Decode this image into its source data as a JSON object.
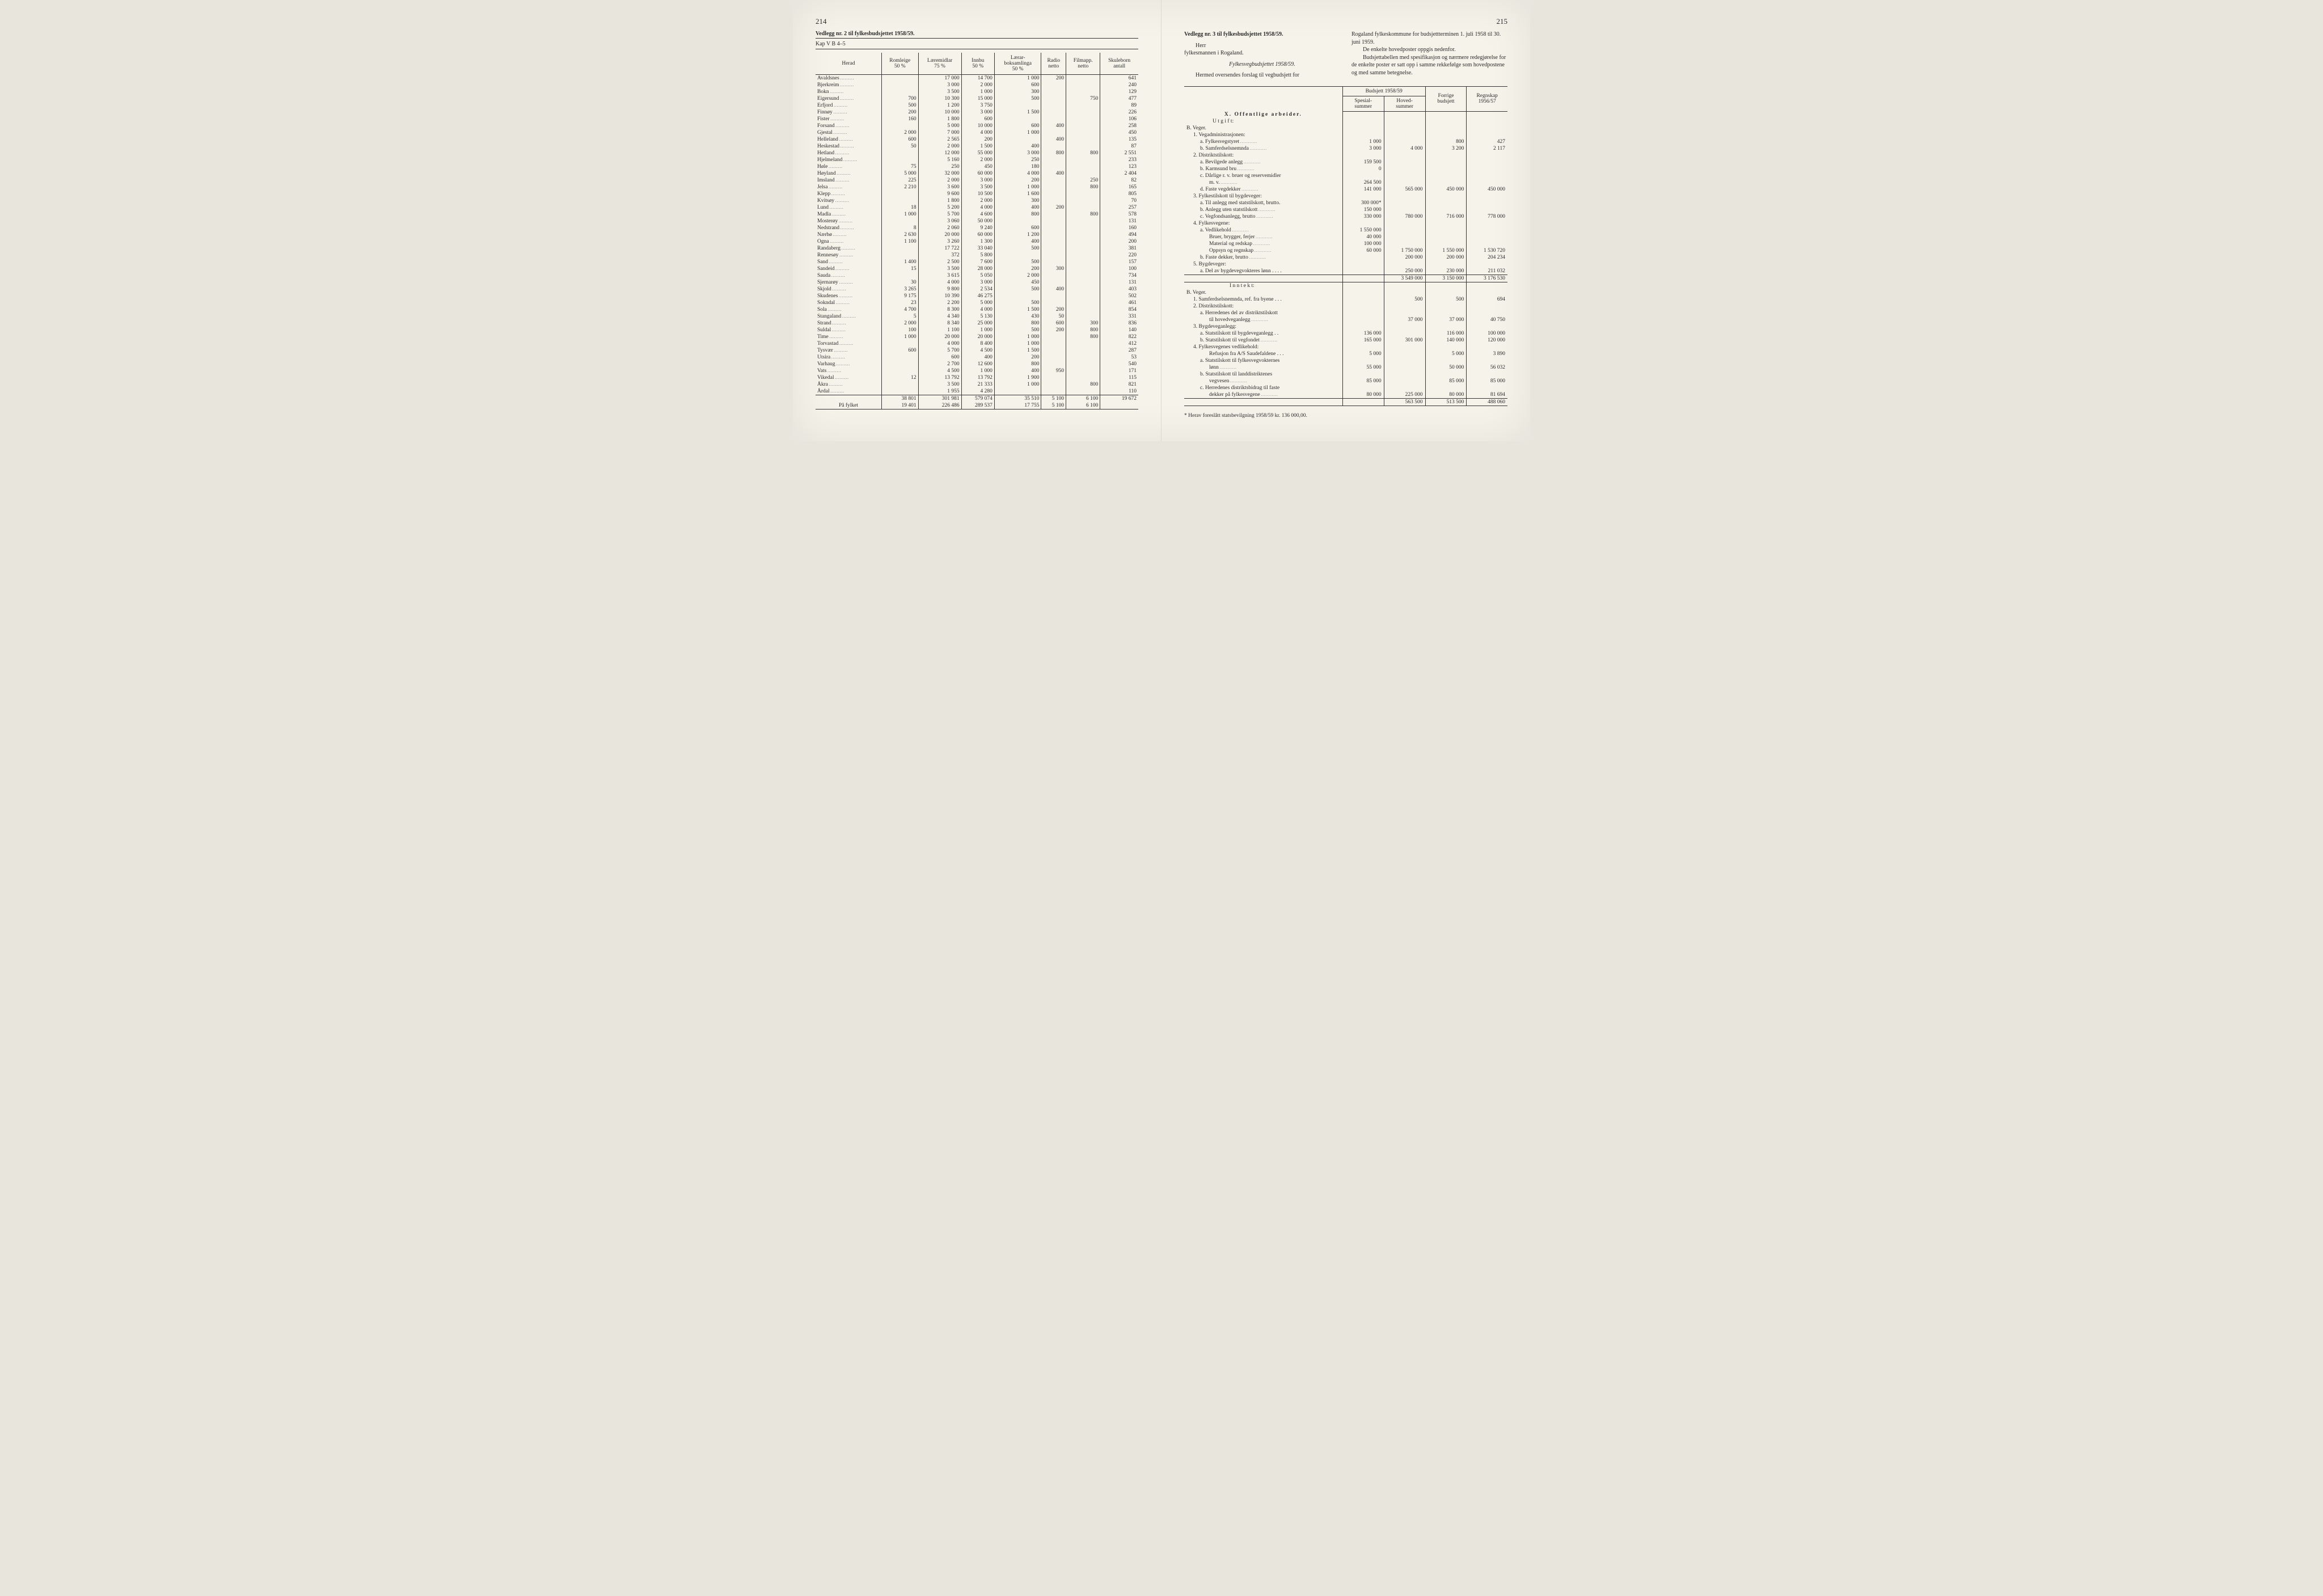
{
  "left": {
    "page_num": "214",
    "vedlegg": "Vedlegg nr. 2 til fylkesbudsjettet 1958/59.",
    "kap": "Kap V B 4–5",
    "columns": [
      "Herad",
      "Romleige\n50 %",
      "Læremidlar\n75 %",
      "Innbu\n50 %",
      "Lærar-\nboksamlinga\n50 %",
      "Radio\nnetto",
      "Filmapp.\nnetto",
      "Skuleborn\nantall"
    ],
    "rows": [
      [
        "Avaldsnes",
        "",
        "17 000",
        "14 700",
        "1 000",
        "200",
        "",
        "641"
      ],
      [
        "Bjerkreim",
        "",
        "3 000",
        "2 000",
        "600",
        "",
        "",
        "240"
      ],
      [
        "Bokn",
        "",
        "3 500",
        "1 000",
        "300",
        "",
        "",
        "129"
      ],
      [
        "Eigersund",
        "700",
        "10 300",
        "15 000",
        "500",
        "",
        "750",
        "477"
      ],
      [
        "Erfjord",
        "500",
        "1 200",
        "3 750",
        "",
        "",
        "",
        "89"
      ],
      [
        "Finnøy",
        "200",
        "10 000",
        "3 000",
        "1 500",
        "",
        "",
        "226"
      ],
      [
        "Fister",
        "160",
        "1 800",
        "600",
        "",
        "",
        "",
        "106"
      ],
      [
        "Forsand",
        "",
        "5 000",
        "10 000",
        "600",
        "400",
        "",
        "258"
      ],
      [
        "Gjestal",
        "2 000",
        "7 000",
        "4 000",
        "1 000",
        "",
        "",
        "450"
      ],
      [
        "Helleland",
        "600",
        "2 565",
        "200",
        "",
        "400",
        "",
        "135"
      ],
      [
        "Heskestad",
        "50",
        "2 000",
        "1 500",
        "400",
        "",
        "",
        "87"
      ],
      [
        "Hetland",
        "",
        "12 000",
        "55 000",
        "3 000",
        "800",
        "800",
        "2 551"
      ],
      [
        "Hjelmeland",
        "",
        "5 160",
        "2 000",
        "250",
        "",
        "",
        "233"
      ],
      [
        "Høle",
        "75",
        "250",
        "450",
        "180",
        "",
        "",
        "123"
      ],
      [
        "Høyland",
        "5 000",
        "32 000",
        "60 000",
        "4 000",
        "400",
        "",
        "2 404"
      ],
      [
        "Imsland",
        "225",
        "2 000",
        "3 000",
        "200",
        "",
        "250",
        "82"
      ],
      [
        "Jelsa",
        "2 210",
        "3 600",
        "3 500",
        "1 000",
        "",
        "800",
        "165"
      ],
      [
        "Klepp",
        "",
        "9 600",
        "10 500",
        "1 600",
        "",
        "",
        "805"
      ],
      [
        "Kvitsøy",
        "",
        "1 800",
        "2 000",
        "300",
        "",
        "",
        "70"
      ],
      [
        "Lund",
        "18",
        "5 200",
        "4 000",
        "400",
        "200",
        "",
        "257"
      ],
      [
        "Madla",
        "1 000",
        "5 700",
        "4 600",
        "800",
        "",
        "800",
        "578"
      ],
      [
        "Mosterøy",
        "",
        "3 060",
        "50 000",
        "",
        "",
        "",
        "131"
      ],
      [
        "Nedstrand",
        "8",
        "2 060",
        "9 240",
        "600",
        "",
        "",
        "160"
      ],
      [
        "Nærbø",
        "2 630",
        "20 000",
        "60 000",
        "1 200",
        "",
        "",
        "494"
      ],
      [
        "Ogna",
        "1 100",
        "3 260",
        "1 300",
        "400",
        "",
        "",
        "200"
      ],
      [
        "Randaberg",
        "",
        "17 722",
        "33 040",
        "500",
        "",
        "",
        "381"
      ],
      [
        "Rennesøy",
        "",
        "372",
        "5 800",
        "",
        "",
        "",
        "220"
      ],
      [
        "Sand",
        "1 400",
        "2 500",
        "7 600",
        "500",
        "",
        "",
        "157"
      ],
      [
        "Sandeid",
        "15",
        "3 500",
        "28 000",
        "200",
        "300",
        "",
        "100"
      ],
      [
        "Sauda",
        "",
        "3 615",
        "5 050",
        "2 000",
        "",
        "",
        "734"
      ],
      [
        "Sjernarøy",
        "30",
        "4 000",
        "3 000",
        "450",
        "",
        "",
        "131"
      ],
      [
        "Skjold",
        "3 265",
        "9 800",
        "2 534",
        "500",
        "400",
        "",
        "403"
      ],
      [
        "Skudenes",
        "9 175",
        "10 390",
        "46 275",
        "",
        "",
        "",
        "502"
      ],
      [
        "Sokndal",
        "23",
        "2 200",
        "5 000",
        "500",
        "",
        "",
        "461"
      ],
      [
        "Sola",
        "4 700",
        "8 300",
        "4 000",
        "1 500",
        "200",
        "",
        "854"
      ],
      [
        "Stangaland",
        "5",
        "4 340",
        "5 130",
        "430",
        "50",
        "",
        "331"
      ],
      [
        "Strand",
        "2 000",
        "8 340",
        "25 000",
        "800",
        "600",
        "300",
        "836"
      ],
      [
        "Suldal",
        "100",
        "1 100",
        "1 000",
        "500",
        "200",
        "800",
        "140"
      ],
      [
        "Time",
        "1 000",
        "20 000",
        "20 000",
        "1 000",
        "",
        "800",
        "822"
      ],
      [
        "Torvastad",
        "",
        "4 000",
        "8 400",
        "1 000",
        "",
        "",
        "412"
      ],
      [
        "Tysvær",
        "600",
        "5 700",
        "4 500",
        "1 500",
        "",
        "",
        "287"
      ],
      [
        "Utsira",
        "",
        "600",
        "400",
        "200",
        "",
        "",
        "53"
      ],
      [
        "Varhaug",
        "",
        "2 700",
        "12 600",
        "800",
        "",
        "",
        "540"
      ],
      [
        "Vats",
        "",
        "4 500",
        "1 000",
        "400",
        "950",
        "",
        "171"
      ],
      [
        "Vikedal",
        "12",
        "13 792",
        "13 792",
        "1 900",
        "",
        "",
        "115"
      ],
      [
        "Åkra",
        "",
        "3 500",
        "21 333",
        "1 000",
        "",
        "800",
        "821"
      ],
      [
        "Årdal",
        "",
        "1 955",
        "4 280",
        "",
        "",
        "",
        "110"
      ]
    ],
    "totals": [
      "",
      "38 801",
      "301 981",
      "579 074",
      "35 510",
      "5 100",
      "6 100",
      "19 672"
    ],
    "pa_fylket": [
      "På fylket",
      "19 401",
      "226 486",
      "289 537",
      "17 755",
      "5 100",
      "6 100",
      ""
    ]
  },
  "right": {
    "page_num": "215",
    "vedlegg": "Vedlegg nr. 3 til fylkesbudsjettet 1958/59.",
    "herr": "Herr",
    "fylkesmannen": "fylkesmannen i Rogaland.",
    "subtitle": "Fylkesvegbudsjettet 1958/59.",
    "intro": "Hermed oversendes forslag til vegbudsjett for",
    "intro2a": "Rogaland fylkeskommune for budsjettterminen 1. juli 1958 til 30. juni 1959.",
    "intro2b": "De enkelte hovedposter oppgis nedenfor.",
    "intro2c": "Budsjettabellen med spesifikasjon og nærmere redegjørelse for de enkelte poster er satt opp i samme rekkefølge som hovedpostene og med samme betegnelse.",
    "col_head1": "Budsjett 1958/59",
    "col_sub1": "Spesial-\nsummer",
    "col_sub2": "Hoved-\nsummer",
    "col_head2": "Forrige\nbudsjett",
    "col_head3": "Regnskap\n1956/57",
    "section_x": "X. Offentlige arbeider.",
    "utgift": "U t g i f t:",
    "inntekt": "I n n t e k t:",
    "lines": [
      {
        "label": "B. Veger.",
        "c": [
          "",
          "",
          "",
          ""
        ],
        "bold": false
      },
      {
        "label": "   1. Vegadministrasjonen:",
        "c": [
          "",
          "",
          "",
          ""
        ]
      },
      {
        "label": "      a. Fylkesvegstyret",
        "c": [
          "1 000",
          "",
          "800",
          "427"
        ],
        "dots": true
      },
      {
        "label": "      b. Samferdselsnemnda",
        "c": [
          "3 000",
          "4 000",
          "3 200",
          "2 117"
        ],
        "dots": true
      },
      {
        "label": "   2. Distriktstilskott:",
        "c": [
          "",
          "",
          "",
          ""
        ]
      },
      {
        "label": "      a. Bevilgede anlegg",
        "c": [
          "159 500",
          "",
          "",
          ""
        ],
        "dots": true
      },
      {
        "label": "      b. Karmsund bru",
        "c": [
          "0",
          "",
          "",
          ""
        ],
        "dots": true
      },
      {
        "label": "      c. Dårlige r. v. bruer og reservemidler",
        "c": [
          "",
          "",
          "",
          ""
        ]
      },
      {
        "label": "          m. v.",
        "c": [
          "264 500",
          "",
          "",
          ""
        ],
        "dots": true
      },
      {
        "label": "      d. Faste vegdekker",
        "c": [
          "141 000",
          "565 000",
          "450 000",
          "450 000"
        ],
        "dots": true
      },
      {
        "label": "   3. Fylkestilskott til bygdeveger:",
        "c": [
          "",
          "",
          "",
          ""
        ]
      },
      {
        "label": "      a. Til anlegg med statstilskott, brutto.",
        "c": [
          "300 000*",
          "",
          "",
          ""
        ]
      },
      {
        "label": "      b. Anlegg uten statstilskott",
        "c": [
          "150 000",
          "",
          "",
          ""
        ],
        "dots": true
      },
      {
        "label": "      c. Vegfondsanlegg, brutto",
        "c": [
          "330 000",
          "780 000",
          "716 000",
          "778 000"
        ],
        "dots": true
      },
      {
        "label": "   4. Fylkesvegene:",
        "c": [
          "",
          "",
          "",
          ""
        ]
      },
      {
        "label": "      a. Vedlikehold",
        "c": [
          "1 550 000",
          "",
          "",
          ""
        ],
        "dots": true
      },
      {
        "label": "          Bruer, brygger, ferjer",
        "c": [
          "40 000",
          "",
          "",
          ""
        ],
        "dots": true
      },
      {
        "label": "          Material og redskap",
        "c": [
          "100 000",
          "",
          "",
          ""
        ],
        "dots": true
      },
      {
        "label": "          Oppsyn og regnskap",
        "c": [
          "60 000",
          "1 750 000",
          "1 550 000",
          "1 530 720"
        ],
        "dots": true
      },
      {
        "label": "      b. Faste dekker, brutto",
        "c": [
          "",
          "200 000",
          "200 000",
          "204 234"
        ],
        "dots": true
      },
      {
        "label": "   5. Bygdeveger:",
        "c": [
          "",
          "",
          "",
          ""
        ]
      },
      {
        "label": "      a. Del av bygdevegvokteres lønn . . . .",
        "c": [
          "",
          "250 000",
          "230 000",
          "211 032"
        ]
      },
      {
        "label": "",
        "c": [
          "",
          "3 549 000",
          "3 150 000",
          "3 176 530"
        ],
        "bt": true,
        "bb": true
      }
    ],
    "lines2": [
      {
        "label": "B. Veger.",
        "c": [
          "",
          "",
          "",
          ""
        ]
      },
      {
        "label": "   1. Samferdselsnemnda, ref. fra byene  . . .",
        "c": [
          "",
          "500",
          "500",
          "694"
        ]
      },
      {
        "label": "   2. Distriktstilskott:",
        "c": [
          "",
          "",
          "",
          ""
        ]
      },
      {
        "label": "      a. Herredenes del av distriktstilskott",
        "c": [
          "",
          "",
          "",
          ""
        ]
      },
      {
        "label": "          til hovedveganlegg",
        "c": [
          "",
          "37 000",
          "37 000",
          "40 750"
        ],
        "dots": true
      },
      {
        "label": "   3. Bygdeveganlegg:",
        "c": [
          "",
          "",
          "",
          ""
        ]
      },
      {
        "label": "      a. Statstilskott til bygdeveganlegg  . .",
        "c": [
          "136 000",
          "",
          "116 000",
          "100 000"
        ]
      },
      {
        "label": "      b. Statstilskott til vegfondet",
        "c": [
          "165 000",
          "301 000",
          "140 000",
          "120 000"
        ],
        "dots": true
      },
      {
        "label": "   4. Fylkesvegenes vedlikehold:",
        "c": [
          "",
          "",
          "",
          ""
        ]
      },
      {
        "label": "          Refusjon fra A/S Saudefaldene  . . .",
        "c": [
          "5 000",
          "",
          "5 000",
          "3 890"
        ]
      },
      {
        "label": "      a. Statstilskott til fylkesvegvokternes",
        "c": [
          "",
          "",
          "",
          ""
        ]
      },
      {
        "label": "          lønn",
        "c": [
          "55 000",
          "",
          "50 000",
          "56 032"
        ],
        "dots": true
      },
      {
        "label": "      b. Statstilskott til landdistriktenes",
        "c": [
          "",
          "",
          "",
          ""
        ]
      },
      {
        "label": "          vegvesen",
        "c": [
          "85 000",
          "",
          "85 000",
          "85 000"
        ],
        "dots": true
      },
      {
        "label": "      c. Herredenes distriktsbidrag til faste",
        "c": [
          "",
          "",
          "",
          ""
        ]
      },
      {
        "label": "          dekker på fylkesvegene",
        "c": [
          "80 000",
          "225 000",
          "80 000",
          "81 694"
        ],
        "dots": true
      },
      {
        "label": "",
        "c": [
          "",
          "563 500",
          "513 500",
          "488 060"
        ],
        "bt": true,
        "bb": true
      }
    ],
    "footnote": "* Herav foreslått statsbevilgning 1958/59 kr. 136 000,00."
  }
}
